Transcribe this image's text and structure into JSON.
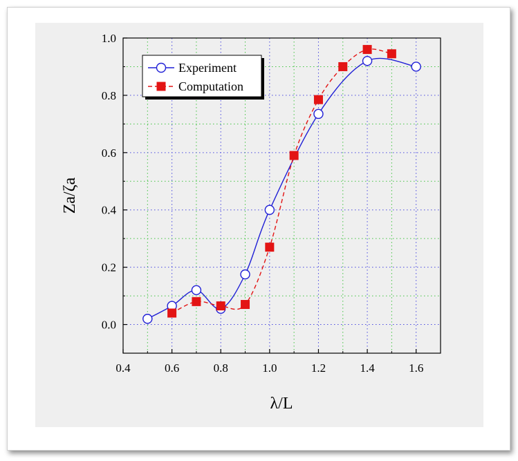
{
  "chart_data": {
    "type": "line",
    "xlabel": "λ/L",
    "ylabel": "Za/ζa",
    "xlim": [
      0.4,
      1.7
    ],
    "ylim": [
      -0.1,
      1.0
    ],
    "xticks": [
      "0.4",
      "0.6",
      "0.8",
      "1.0",
      "1.2",
      "1.4",
      "1.6"
    ],
    "yticks": [
      "0.0",
      "0.2",
      "0.4",
      "0.6",
      "0.8",
      "1.0"
    ],
    "grid": true,
    "legend_position": "top-left",
    "series": [
      {
        "name": "Experiment",
        "marker": "open-circle",
        "line": "solid",
        "color": "#1f1fd6",
        "x": [
          0.5,
          0.6,
          0.7,
          0.8,
          0.9,
          1.0,
          1.2,
          1.4,
          1.6
        ],
        "y": [
          0.02,
          0.065,
          0.12,
          0.055,
          0.175,
          0.4,
          0.735,
          0.92,
          0.9
        ]
      },
      {
        "name": "Computation",
        "marker": "filled-square",
        "line": "dashed",
        "color": "#e31414",
        "x": [
          0.6,
          0.7,
          0.8,
          0.9,
          1.0,
          1.1,
          1.2,
          1.3,
          1.4,
          1.5
        ],
        "y": [
          0.04,
          0.08,
          0.065,
          0.07,
          0.27,
          0.59,
          0.785,
          0.9,
          0.96,
          0.945
        ]
      }
    ]
  }
}
